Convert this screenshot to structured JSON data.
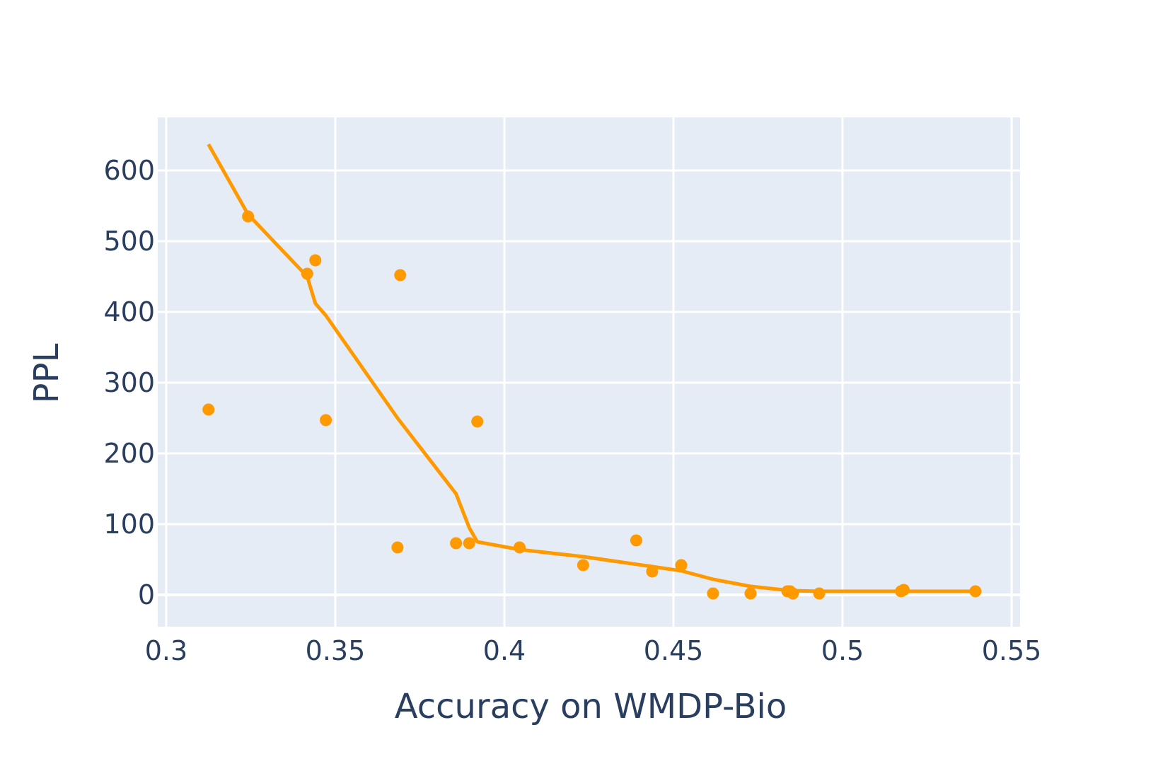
{
  "chart_data": {
    "type": "scatter",
    "title": "",
    "xlabel": "Accuracy on WMDP-Bio",
    "ylabel": "PPL",
    "xlim": [
      0.2975,
      0.5525
    ],
    "ylim": [
      -45,
      675
    ],
    "xticks": [
      0.3,
      0.35,
      0.4,
      0.45,
      0.5,
      0.55
    ],
    "xtick_labels": [
      "0.3",
      "0.35",
      "0.4",
      "0.45",
      "0.5",
      "0.55"
    ],
    "yticks": [
      0,
      100,
      200,
      300,
      400,
      500,
      600
    ],
    "ytick_labels": [
      "0",
      "100",
      "200",
      "300",
      "400",
      "500",
      "600"
    ],
    "grid": true,
    "legend": "none",
    "colors": {
      "series": "#ff9900",
      "plot_bg": "#e5ecf6",
      "grid": "#ffffff",
      "text": "#2a3f5f"
    },
    "series": [
      {
        "kind": "scatter",
        "x": [
          0.3125,
          0.3242,
          0.3417,
          0.3441,
          0.3472,
          0.3684,
          0.3692,
          0.3857,
          0.3896,
          0.392,
          0.4045,
          0.4233,
          0.439,
          0.4437,
          0.4523,
          0.4617,
          0.4728,
          0.4837,
          0.4845,
          0.4853,
          0.4931,
          0.5173,
          0.5181,
          0.5393
        ],
        "y": [
          262,
          535,
          454,
          473,
          247,
          67,
          452,
          73,
          73,
          245,
          67,
          42,
          77,
          33,
          42,
          2,
          2,
          5,
          5,
          2,
          2,
          5,
          7,
          5
        ]
      },
      {
        "kind": "line",
        "x": [
          0.3125,
          0.3242,
          0.3417,
          0.3441,
          0.3472,
          0.3684,
          0.3857,
          0.3896,
          0.392,
          0.4045,
          0.4233,
          0.4437,
          0.4523,
          0.4617,
          0.4728,
          0.4845,
          0.4931,
          0.5173,
          0.5393
        ],
        "y": [
          637,
          538,
          450,
          412,
          395,
          250,
          143,
          95,
          75,
          64,
          54,
          40,
          34,
          22,
          12,
          6,
          5,
          5,
          5
        ]
      }
    ]
  }
}
